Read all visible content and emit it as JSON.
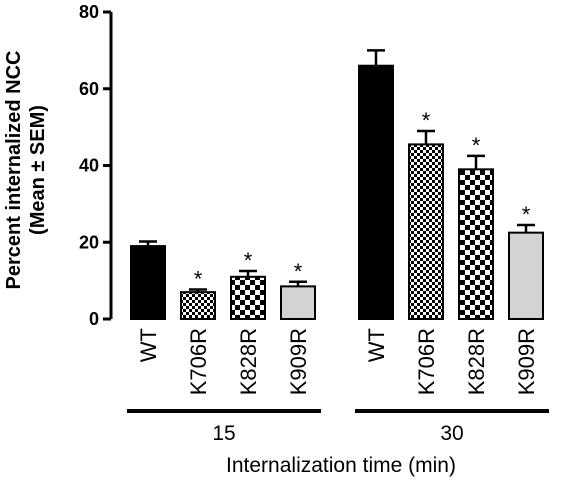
{
  "chart_data": {
    "type": "bar",
    "ylabel_line1": "Percent internalized NCC",
    "ylabel_line2": "(Mean ± SEM)",
    "xlabel": "Internalization time (min)",
    "ylim": [
      0,
      80
    ],
    "yticks": [
      0,
      20,
      40,
      60,
      80
    ],
    "categories": [
      "WT",
      "K706R",
      "K828R",
      "K909R"
    ],
    "groups": [
      {
        "label": "15",
        "bars": [
          {
            "category": "WT",
            "value": 19,
            "error": 1.2,
            "significant": false
          },
          {
            "category": "K706R",
            "value": 7,
            "error": 0.7,
            "significant": true
          },
          {
            "category": "K828R",
            "value": 11,
            "error": 1.5,
            "significant": true
          },
          {
            "category": "K909R",
            "value": 8.5,
            "error": 1.2,
            "significant": true
          }
        ]
      },
      {
        "label": "30",
        "bars": [
          {
            "category": "WT",
            "value": 66,
            "error": 4.0,
            "significant": false
          },
          {
            "category": "K706R",
            "value": 45.5,
            "error": 3.5,
            "significant": true
          },
          {
            "category": "K828R",
            "value": 39,
            "error": 3.5,
            "significant": true
          },
          {
            "category": "K909R",
            "value": 22.5,
            "error": 2.0,
            "significant": true
          }
        ]
      }
    ],
    "significance_marker": "*",
    "fills": {
      "WT": "#000000",
      "K706R": "checker-small",
      "K828R": "checker-large",
      "K909R": "#d3d3d3"
    },
    "grid": false,
    "legend": "none"
  }
}
